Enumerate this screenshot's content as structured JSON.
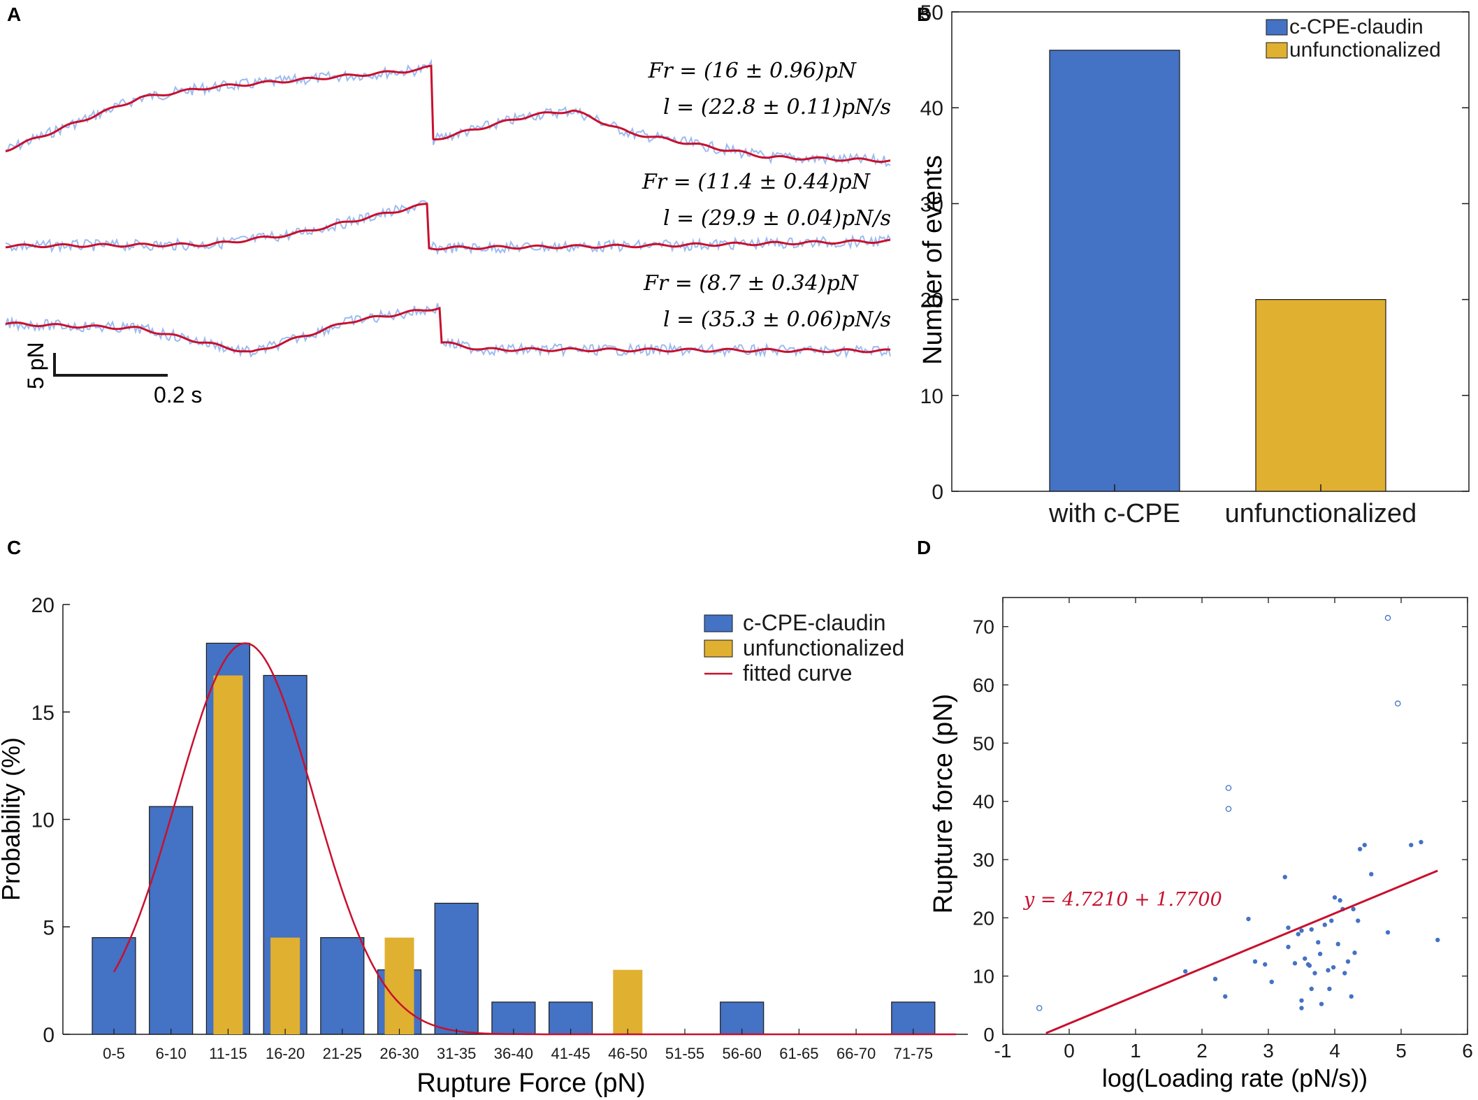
{
  "panel_labels": {
    "a": "A",
    "b": "B",
    "c": "C",
    "d": "D"
  },
  "colors": {
    "blue": "#4472c4",
    "gold": "#e0b030",
    "red": "#c8102e",
    "trace_light": "#9bbcf0",
    "dark": "#1a1a1a"
  },
  "panel_a": {
    "traces": [
      {
        "fr": "Fr = (16 ± 0.96)pN",
        "l": "l = (22.8 ± 0.11)pN/s"
      },
      {
        "fr": "Fr = (11.4 ± 0.44)pN",
        "l": "l = (29.9 ± 0.04)pN/s"
      },
      {
        "fr": "Fr = (8.7 ± 0.34)pN",
        "l": "l = (35.3 ± 0.06)pN/s"
      }
    ],
    "scale_y": "5 pN",
    "scale_x": "0.2 s"
  },
  "chart_data": [
    {
      "type": "bar",
      "panel": "B",
      "categories": [
        "with c-CPE",
        "unfunctionalized"
      ],
      "values": [
        46,
        20
      ],
      "series_colors": [
        "#4472c4",
        "#e0b030"
      ],
      "ylabel": "Number of events",
      "ylim": [
        0,
        50
      ],
      "yticks": [
        0,
        10,
        20,
        30,
        40,
        50
      ],
      "legend": [
        "c-CPE-claudin",
        "unfunctionalized"
      ],
      "legend_position": "top-right"
    },
    {
      "type": "bar",
      "panel": "C",
      "categories": [
        "0-5",
        "6-10",
        "11-15",
        "16-20",
        "21-25",
        "26-30",
        "31-35",
        "36-40",
        "41-45",
        "46-50",
        "51-55",
        "56-60",
        "61-65",
        "66-70",
        "71-75"
      ],
      "series": [
        {
          "name": "c-CPE-claudin",
          "values": [
            4.5,
            10.6,
            18.2,
            16.7,
            4.5,
            3.0,
            6.1,
            1.5,
            1.5,
            0,
            0,
            1.5,
            0,
            0,
            1.5
          ]
        },
        {
          "name": "unfunctionalized",
          "values": [
            0,
            0,
            16.7,
            4.5,
            0,
            4.5,
            0,
            0,
            0,
            3.0,
            0,
            0,
            0,
            0,
            0
          ]
        },
        {
          "name": "fitted curve",
          "peak": 18.2,
          "center_bin": 2.6,
          "sigma_bins": 1.2
        }
      ],
      "xlabel": "Rupture Force (pN)",
      "ylabel": "Probability (%)",
      "ylim": [
        0,
        20
      ],
      "yticks": [
        0,
        5,
        10,
        15,
        20
      ],
      "legend_position": "top-right"
    },
    {
      "type": "scatter",
      "panel": "D",
      "xlabel": "log(Loading rate (pN/s))",
      "ylabel": "Rupture force (pN)",
      "xlim": [
        -1,
        6
      ],
      "ylim": [
        0,
        75
      ],
      "xticks": [
        -1,
        0,
        1,
        2,
        3,
        4,
        5,
        6
      ],
      "yticks": [
        0,
        10,
        20,
        30,
        40,
        50,
        60,
        70
      ],
      "points": [
        [
          1.75,
          10.8
        ],
        [
          2.2,
          9.5
        ],
        [
          2.35,
          6.5
        ],
        [
          2.7,
          19.8
        ],
        [
          2.8,
          12.5
        ],
        [
          2.95,
          12.0
        ],
        [
          3.05,
          9.0
        ],
        [
          3.25,
          27.0
        ],
        [
          3.3,
          18.3
        ],
        [
          3.3,
          15.0
        ],
        [
          3.4,
          12.2
        ],
        [
          3.45,
          17.2
        ],
        [
          3.5,
          17.8
        ],
        [
          3.5,
          5.8
        ],
        [
          3.5,
          4.5
        ],
        [
          3.55,
          13.0
        ],
        [
          3.6,
          12.0
        ],
        [
          3.62,
          11.8
        ],
        [
          3.65,
          7.8
        ],
        [
          3.65,
          18.0
        ],
        [
          3.7,
          10.5
        ],
        [
          3.75,
          15.8
        ],
        [
          3.78,
          13.8
        ],
        [
          3.8,
          5.2
        ],
        [
          3.85,
          18.8
        ],
        [
          3.9,
          11.0
        ],
        [
          3.92,
          7.8
        ],
        [
          3.95,
          19.5
        ],
        [
          3.98,
          11.5
        ],
        [
          4.0,
          23.5
        ],
        [
          4.05,
          15.5
        ],
        [
          4.08,
          23.0
        ],
        [
          4.12,
          21.5
        ],
        [
          4.15,
          10.5
        ],
        [
          4.2,
          12.5
        ],
        [
          4.25,
          6.5
        ],
        [
          4.28,
          21.5
        ],
        [
          4.3,
          14.0
        ],
        [
          4.35,
          19.5
        ],
        [
          4.38,
          31.8
        ],
        [
          4.45,
          32.5
        ],
        [
          4.55,
          27.5
        ],
        [
          4.8,
          17.5
        ],
        [
          5.15,
          32.5
        ],
        [
          5.3,
          33.0
        ],
        [
          5.55,
          16.2
        ]
      ],
      "outliers": [
        [
          -0.45,
          4.5
        ],
        [
          2.4,
          42.3
        ],
        [
          2.4,
          38.7
        ],
        [
          4.8,
          71.5
        ],
        [
          4.95,
          56.8
        ]
      ],
      "fit_line": {
        "x": [
          -0.35,
          5.55
        ],
        "y": [
          0.2,
          28.1
        ],
        "label": "y = 4.7210 + 1.7700"
      }
    }
  ]
}
